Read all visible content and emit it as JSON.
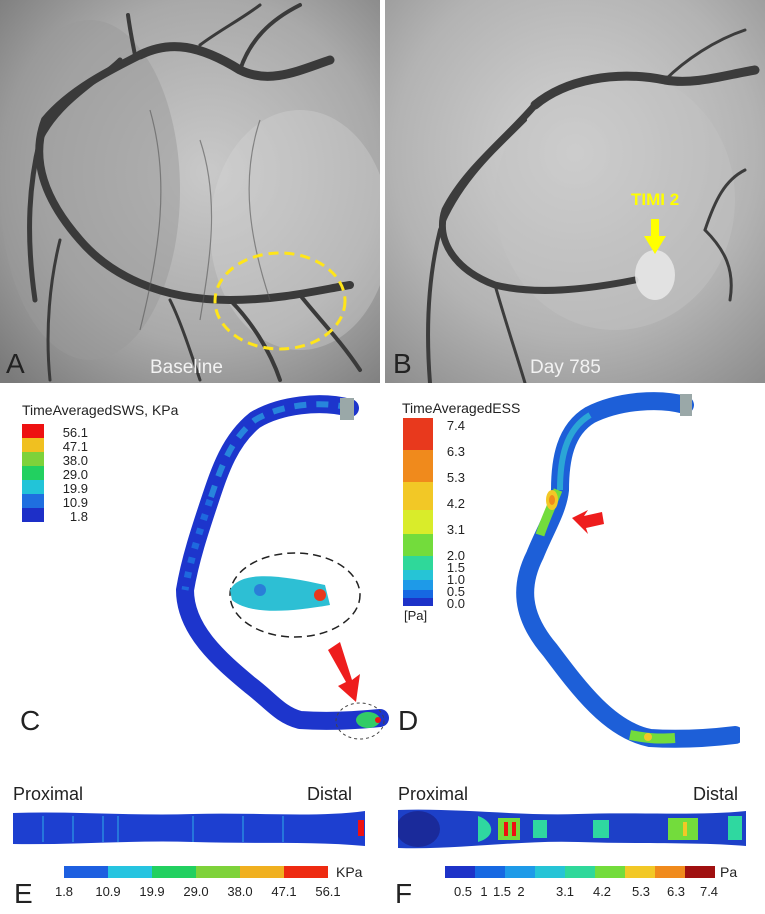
{
  "panels": {
    "A": {
      "letter": "A",
      "caption": "Baseline"
    },
    "B": {
      "letter": "B",
      "caption": "Day 785",
      "annotation": "TIMI 2"
    },
    "C": {
      "letter": "C",
      "legend_title": "TimeAveragedSWS, KPa",
      "legend_values": [
        "56.1",
        "47.1",
        "38.0",
        "29.0",
        "19.9",
        "10.9",
        "1.8"
      ]
    },
    "D": {
      "letter": "D",
      "legend_title": "TimeAveragedESS",
      "legend_unit": "[Pa]",
      "legend_values": [
        "7.4",
        "6.3",
        "5.3",
        "4.2",
        "3.1",
        "2.0",
        "1.5",
        "1.0",
        "0.5",
        "0.0"
      ]
    },
    "E": {
      "letter": "E",
      "left_label": "Proximal",
      "right_label": "Distal",
      "unit": "KPa",
      "ticks": [
        "1.8",
        "10.9",
        "19.9",
        "29.0",
        "38.0",
        "47.1",
        "56.1"
      ]
    },
    "F": {
      "letter": "F",
      "left_label": "Proximal",
      "right_label": "Distal",
      "unit": "Pa",
      "ticks": [
        "0.5",
        "1",
        "1.5",
        "2",
        "3.1",
        "4.2",
        "5.3",
        "6.3",
        "7.4"
      ]
    }
  },
  "colors": {
    "sws_scale": [
      "#ee1111",
      "#f0c020",
      "#7ed23a",
      "#22d060",
      "#22c4d8",
      "#1f6fe0",
      "#1d2fc8"
    ],
    "ess_scale": [
      "#e8391d",
      "#f08a1c",
      "#f2c826",
      "#d9ec2a",
      "#73dc3c",
      "#2fd89a",
      "#26c4d6",
      "#1e9ae8",
      "#1668e2",
      "#1d32c8"
    ],
    "annotation": "#ffff00",
    "dashed_circle": "#ffe51a"
  }
}
